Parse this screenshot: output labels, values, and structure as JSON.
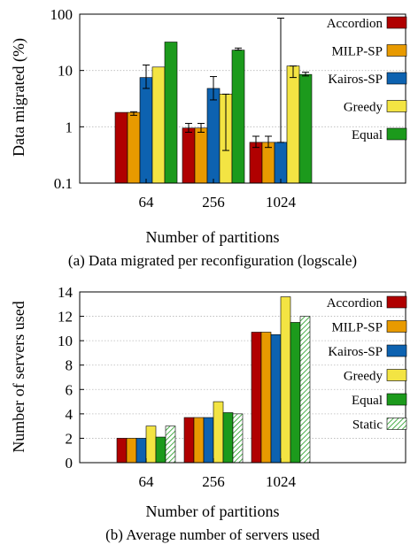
{
  "chart_data": [
    {
      "type": "bar",
      "yscale": "log",
      "ylim": [
        0.1,
        100
      ],
      "yticks": [
        "0.1",
        "1",
        "10",
        "100"
      ],
      "ylabel": "Data migrated (%)",
      "xlabel": "Number of partitions",
      "caption": "(a) Data migrated per reconfiguration (logscale)",
      "categories": [
        "64",
        "256",
        "1024"
      ],
      "grid": true,
      "legend_position": "right",
      "series": [
        {
          "name": "Accordion",
          "color": "#b00000",
          "pattern": "solid",
          "values": [
            1.8,
            0.95,
            0.53
          ],
          "err_low": [
            1.8,
            0.8,
            0.43
          ],
          "err_high": [
            1.8,
            1.15,
            0.68
          ]
        },
        {
          "name": "MILP-SP",
          "color": "#e89a00",
          "pattern": "solid",
          "values": [
            1.8,
            0.95,
            0.53
          ],
          "err_low": [
            1.6,
            0.8,
            0.43
          ],
          "err_high": [
            1.85,
            1.15,
            0.68
          ]
        },
        {
          "name": "Kairos-SP",
          "color": "#0d62b0",
          "pattern": "solid",
          "values": [
            7.5,
            4.8,
            0.53
          ],
          "err_low": [
            4.8,
            3.0,
            0.53
          ],
          "err_high": [
            12.5,
            7.8,
            85
          ]
        },
        {
          "name": "Greedy",
          "color": "#f3e443",
          "pattern": "solid",
          "values": [
            11.5,
            3.8,
            12
          ],
          "err_low": [
            11.5,
            0.38,
            7.5
          ],
          "err_high": [
            11.5,
            3.8,
            12
          ]
        },
        {
          "name": "Equal",
          "color": "#1c9a1c",
          "pattern": "solid",
          "values": [
            32,
            23,
            8.5
          ],
          "err_low": [
            32,
            23,
            8.0
          ],
          "err_high": [
            32,
            25,
            9.3
          ]
        }
      ]
    },
    {
      "type": "bar",
      "yscale": "linear",
      "ylim": [
        0,
        14
      ],
      "yticks": [
        "0",
        "2",
        "4",
        "6",
        "8",
        "10",
        "12",
        "14"
      ],
      "ylabel": "Number of servers used",
      "xlabel": "Number of partitions",
      "caption": "(b) Average number of servers used",
      "categories": [
        "64",
        "256",
        "1024"
      ],
      "grid": true,
      "legend_position": "right",
      "series": [
        {
          "name": "Accordion",
          "color": "#b00000",
          "pattern": "solid",
          "values": [
            2.0,
            3.7,
            10.7
          ]
        },
        {
          "name": "MILP-SP",
          "color": "#e89a00",
          "pattern": "solid",
          "values": [
            2.0,
            3.7,
            10.7
          ]
        },
        {
          "name": "Kairos-SP",
          "color": "#0d62b0",
          "pattern": "solid",
          "values": [
            2.0,
            3.7,
            10.5
          ]
        },
        {
          "name": "Greedy",
          "color": "#f3e443",
          "pattern": "solid",
          "values": [
            3.0,
            5.0,
            13.6
          ]
        },
        {
          "name": "Equal",
          "color": "#1c9a1c",
          "pattern": "solid",
          "values": [
            2.1,
            4.1,
            11.5
          ]
        },
        {
          "name": "Static",
          "color": "#1c9a1c",
          "pattern": "hatch",
          "values": [
            3.0,
            4.0,
            12.0
          ]
        }
      ]
    }
  ]
}
